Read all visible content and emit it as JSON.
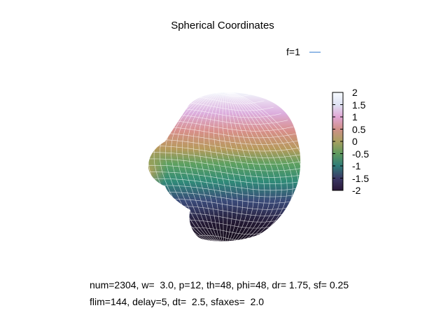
{
  "chart_data": {
    "type": "surface3d",
    "title": "Spherical Coordinates",
    "legend": {
      "label": "f=1",
      "color": "#3c82d2",
      "placement": "top-right"
    },
    "colorbar": {
      "range": [
        -2,
        2
      ],
      "ticks": [
        "2",
        "1.5",
        "1",
        "0.5",
        "0",
        "-0.5",
        "-1",
        "-1.5",
        "-2"
      ],
      "palette": [
        "#2a1838",
        "#3b3866",
        "#2f7b78",
        "#5e9a5e",
        "#a8a060",
        "#cf8f88",
        "#e1a6d4",
        "#dfe3f4",
        "#f7fbff"
      ]
    },
    "mesh_color": "#ffffff",
    "grid": false
  },
  "annotations": {
    "line1": "num=2304, w=  3.0, p=12, th=48, phi=48, dr= 1.75, sf= 0.25",
    "line2": "flim=144, delay=5, dt=  2.5, sfaxes=  2.0"
  }
}
